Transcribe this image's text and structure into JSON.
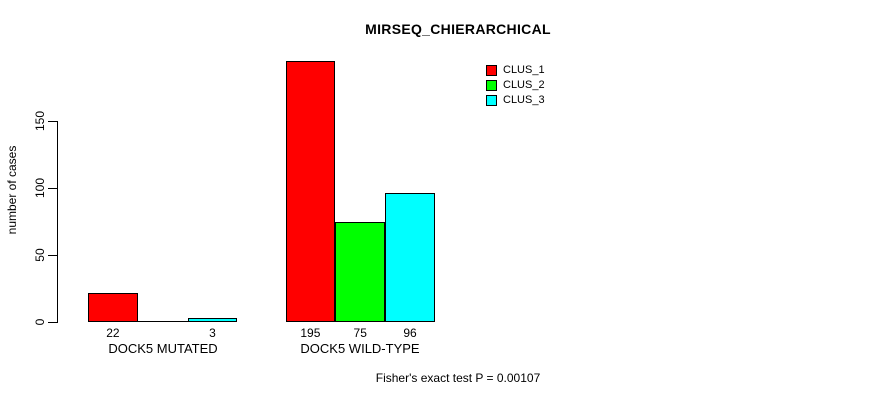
{
  "title": "MIRSEQ_CHIERARCHICAL",
  "y_axis": {
    "label": "number of cases",
    "tick_labels": [
      "0",
      "50",
      "100",
      "150"
    ]
  },
  "x_axis": {
    "group_labels": [
      "DOCK5 MUTATED",
      "DOCK5 WILD-TYPE"
    ]
  },
  "legend": {
    "items": [
      {
        "label": "CLUS_1",
        "color": "#ff0000"
      },
      {
        "label": "CLUS_2",
        "color": "#00ff00"
      },
      {
        "label": "CLUS_3",
        "color": "#00ffff"
      }
    ]
  },
  "caption": "Fisher's exact test P = 0.00107",
  "colors": {
    "clus_1": "#ff0000",
    "clus_2": "#00ff00",
    "clus_3": "#00ffff",
    "axis": "#000000",
    "background": "#ffffff"
  },
  "chart_data": {
    "type": "bar",
    "title": "MIRSEQ_CHIERARCHICAL",
    "xlabel": "",
    "ylabel": "number of cases",
    "categories": [
      "DOCK5 MUTATED",
      "DOCK5 WILD-TYPE"
    ],
    "series": [
      {
        "name": "CLUS_1",
        "color": "#ff0000",
        "values": [
          22,
          195
        ]
      },
      {
        "name": "CLUS_2",
        "color": "#00ff00",
        "values": [
          0,
          75
        ]
      },
      {
        "name": "CLUS_3",
        "color": "#00ffff",
        "values": [
          3,
          96
        ]
      }
    ],
    "bar_value_labels": [
      [
        "22",
        "",
        "3"
      ],
      [
        "195",
        "75",
        "96"
      ]
    ],
    "yticks": [
      0,
      50,
      100,
      150
    ],
    "ylim": [
      0,
      195
    ],
    "grid": false,
    "legend_position": "top-right",
    "annotation": "Fisher's exact test P = 0.00107"
  }
}
